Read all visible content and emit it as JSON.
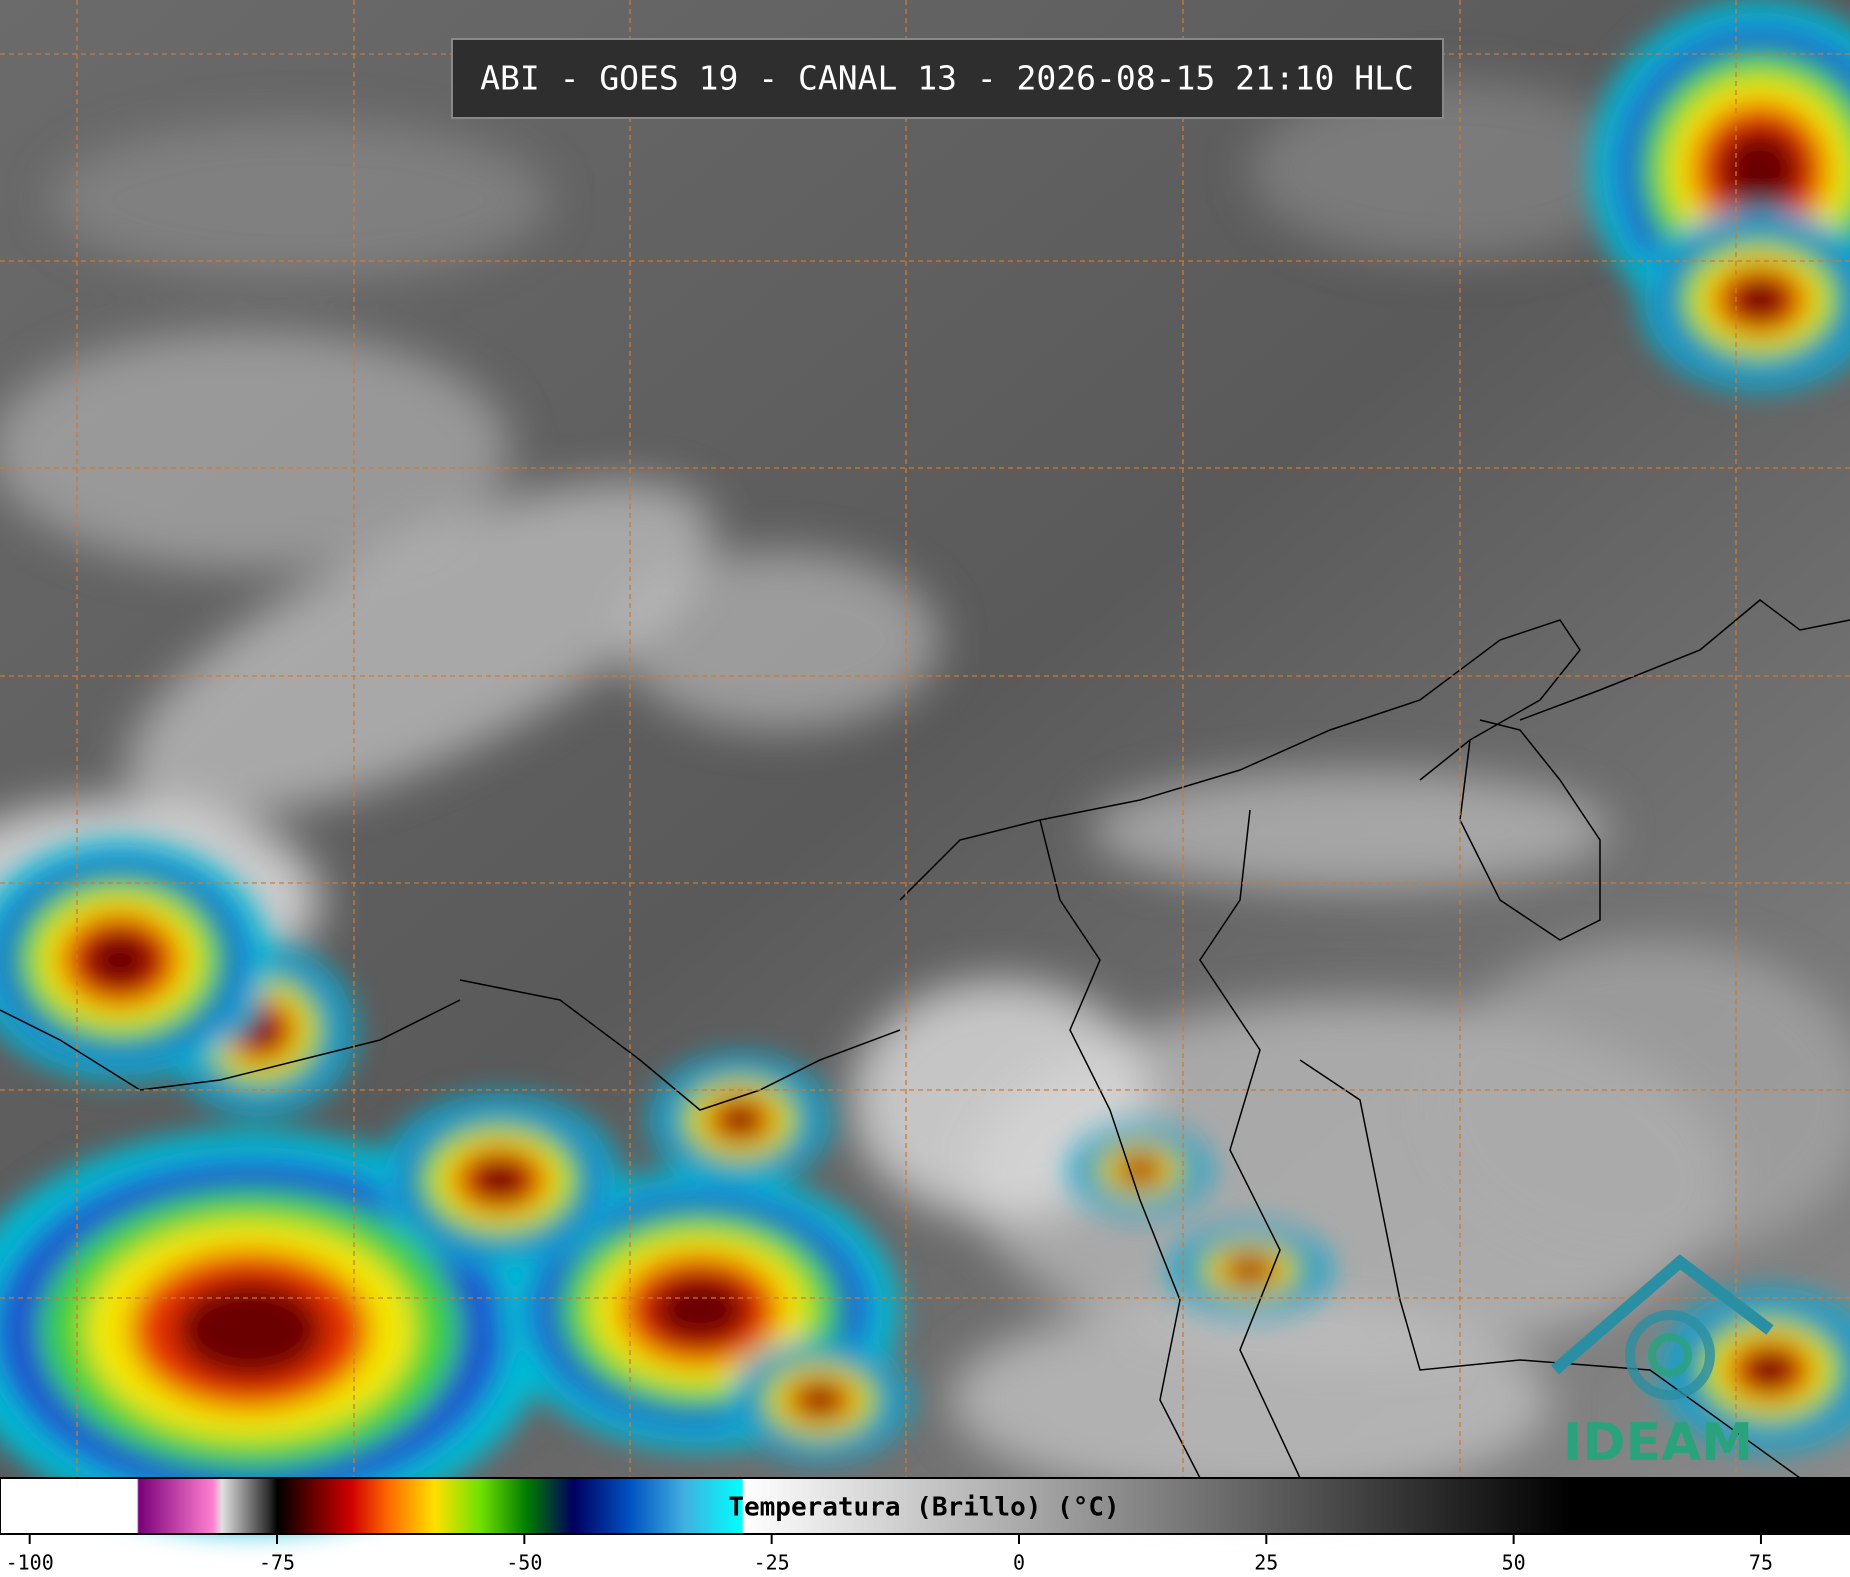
{
  "title": "ABI - GOES 19 - CANAL 13 - 2026-08-15 21:10 HLC",
  "colorbar": {
    "label": "Temperatura (Brillo) (°C)",
    "lim": [
      -103,
      84
    ],
    "ticks": [
      -100,
      -75,
      -50,
      -25,
      0,
      25,
      50,
      75
    ]
  },
  "logo": "IDEAM"
}
